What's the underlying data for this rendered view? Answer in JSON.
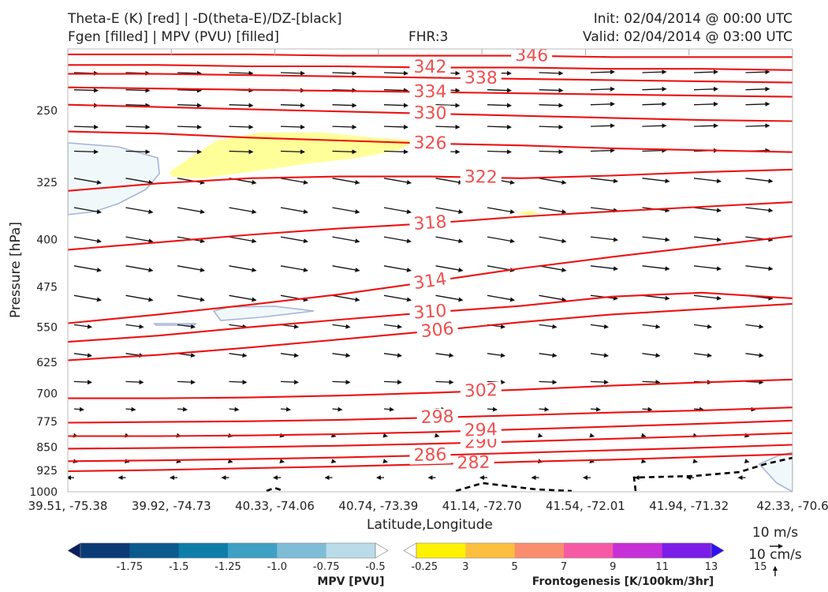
{
  "header": {
    "title_line1": "Theta-E (K) [red] | -D(theta-E)/DZ-[black]",
    "title_line2": "Fgen [filled] | MPV (PVU) [filled]",
    "fhr": "FHR:3",
    "init": "Init: 02/04/2014 @ 00:00 UTC",
    "valid": "Valid: 02/04/2014 @ 03:00 UTC"
  },
  "chart_data": {
    "type": "line",
    "xlabel": "Latitude,Longitude",
    "ylabel": "Pressure [hPa]",
    "x_ticks": [
      "39.51, -75.38",
      "39.92, -74.73",
      "40.33, -74.06",
      "40.74, -73.39",
      "41.14, -72.70",
      "41.54, -72.01",
      "41.94, -71.32",
      "42.33, -70.6"
    ],
    "y_ticks": [
      250,
      325,
      400,
      475,
      550,
      625,
      700,
      775,
      850,
      925,
      1000
    ],
    "ylim": [
      1000,
      200
    ],
    "y_scale": "log",
    "theta_e_contours": [
      {
        "value": 282,
        "label": "282",
        "p": [
          928,
          924,
          918,
          912,
          905,
          897,
          890,
          881,
          872
        ]
      },
      {
        "value": 286,
        "label": "286",
        "p": [
          895,
          892,
          888,
          883,
          876,
          868,
          860,
          852,
          843
        ]
      },
      {
        "value": 290,
        "label": "290",
        "p": [
          855,
          853,
          850,
          846,
          840,
          833,
          825,
          817,
          808
        ]
      },
      {
        "value": 294,
        "label": "294",
        "p": [
          817,
          817,
          815,
          811,
          805,
          797,
          789,
          781,
          772
        ]
      },
      {
        "value": 298,
        "label": "298",
        "p": [
          778,
          776,
          774,
          770,
          764,
          757,
          750,
          744,
          736
        ]
      },
      {
        "value": 302,
        "label": "302",
        "p": [
          712,
          712,
          710,
          705,
          698,
          690,
          680,
          672,
          665
        ]
      },
      {
        "value": 306,
        "label": "306",
        "p": [
          620,
          608,
          592,
          575,
          558,
          540,
          525,
          515,
          505
        ]
      },
      {
        "value": 310,
        "label": "310",
        "p": [
          580,
          567,
          550,
          535,
          521,
          509,
          492,
          485,
          495
        ]
      },
      {
        "value": 314,
        "label": "314",
        "p": [
          542,
          525,
          507,
          488,
          466,
          444,
          426,
          410,
          395
        ]
      },
      {
        "value": 318,
        "label": "318",
        "p": [
          415,
          404,
          393,
          384,
          377,
          368,
          361,
          355,
          349
        ]
      },
      {
        "value": 322,
        "label": "322",
        "p": [
          335,
          326,
          320,
          318,
          318,
          320,
          317,
          313,
          310
        ]
      },
      {
        "value": 326,
        "label": "326",
        "p": [
          270,
          272,
          276,
          279,
          282,
          284,
          287,
          289,
          291
        ]
      },
      {
        "value": 330,
        "label": "330",
        "p": [
          245,
          247,
          249,
          251,
          253,
          255,
          257,
          259,
          260
        ]
      },
      {
        "value": 334,
        "label": "334",
        "p": [
          230,
          231,
          232,
          233,
          234,
          235,
          236,
          237,
          238
        ]
      },
      {
        "value": 338,
        "label": "338",
        "p": [
          219,
          219,
          220,
          221,
          222,
          223,
          224,
          225,
          226
        ]
      },
      {
        "value": 342,
        "label": "342",
        "p": [
          212,
          212,
          213,
          213,
          214,
          214,
          215,
          215,
          216
        ]
      },
      {
        "value": 346,
        "label": "346",
        "p": [
          204,
          204,
          204,
          205,
          205,
          205,
          206,
          206,
          206
        ]
      }
    ],
    "colorbars": [
      {
        "title": "MPV [PVU]",
        "labels": [
          "-1.75",
          "-1.5",
          "-1.25",
          "-1.0",
          "-0.75",
          "-0.5",
          "-0.25"
        ],
        "colors": [
          "#08205e",
          "#0a3a74",
          "#0b5a8e",
          "#0e7ea8",
          "#3ea0c4",
          "#7fbcd6",
          "#b9dce8",
          "#ffffff"
        ]
      },
      {
        "title": "Frontogenesis [K/100km/3hr]",
        "labels": [
          "3",
          "5",
          "7",
          "9",
          "11",
          "13",
          "15"
        ],
        "colors": [
          "#ffffff",
          "#fff200",
          "#fcbf3f",
          "#fa8d6e",
          "#f75aa5",
          "#c630d6",
          "#7b1ee8",
          "#2e10f5"
        ]
      }
    ],
    "vector_scale": {
      "horizontal": "10 m/s",
      "vertical": "10 cm/s"
    }
  }
}
